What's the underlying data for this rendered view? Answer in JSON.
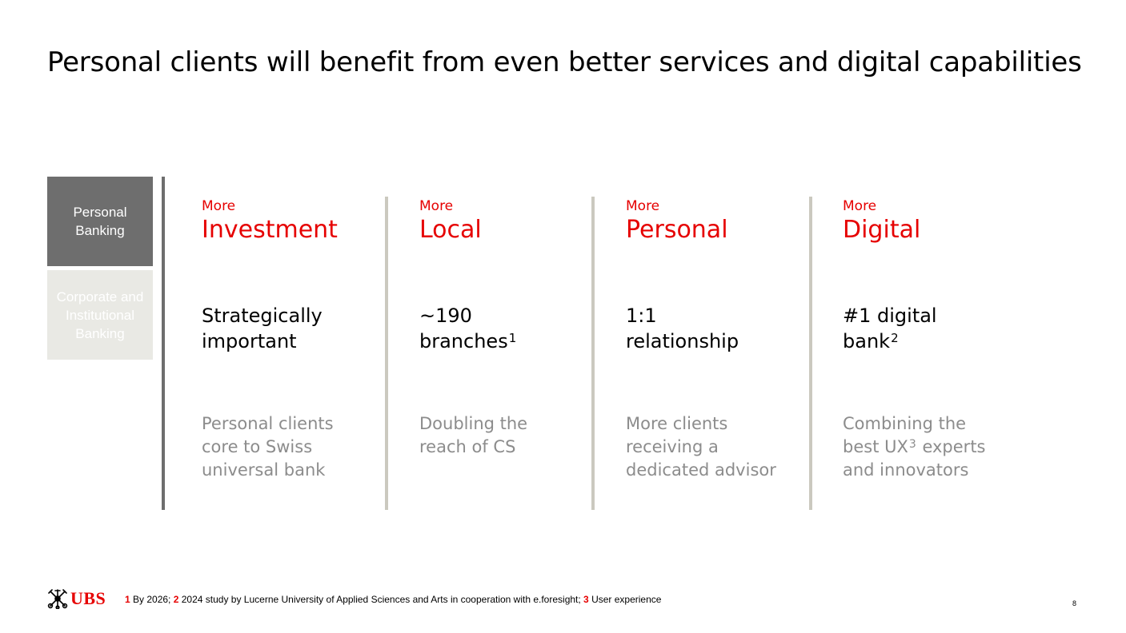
{
  "title": "Personal clients will benefit from even better services and digital capabilities",
  "tabs": [
    {
      "label": "Personal\nBanking"
    },
    {
      "label": "Corporate and\nInstitutional\nBanking"
    }
  ],
  "columns": [
    {
      "more": "More",
      "heading": "Investment",
      "stat": [
        "Strategically",
        "important"
      ],
      "stat_sup": "",
      "desc": [
        "Personal clients",
        "core to Swiss",
        "universal bank"
      ]
    },
    {
      "more": "More",
      "heading": "Local",
      "stat": [
        "~190",
        "branches"
      ],
      "stat_sup": "1",
      "desc": [
        "Doubling the",
        "reach of CS"
      ]
    },
    {
      "more": "More",
      "heading": "Personal",
      "stat": [
        "1:1",
        "relationship"
      ],
      "stat_sup": "",
      "desc": [
        "More clients",
        "receiving a",
        "dedicated advisor"
      ]
    },
    {
      "more": "More",
      "heading": "Digital",
      "stat": [
        "#1 digital",
        "bank"
      ],
      "stat_sup": "2",
      "desc_line1": "Combining the",
      "desc_line2_pre": "best UX",
      "desc_line2_sup": "3",
      "desc_line2_post": " experts",
      "desc_line3": "and innovators"
    }
  ],
  "footer": {
    "logo_text": "UBS",
    "notes": [
      {
        "num": "1",
        "text": " By 2026; "
      },
      {
        "num": "2",
        "text": " 2024 study by Lucerne University of Applied Sciences and Arts in cooperation with e.foresight; "
      },
      {
        "num": "3",
        "text": " User experience"
      }
    ],
    "page_number": "8"
  },
  "colors": {
    "accent": "#e60000",
    "tab_active": "#6e6e6e",
    "tab_inactive": "#e9e9e4",
    "separator": "#cbc9bf",
    "desc_text": "#8c8c8c"
  }
}
